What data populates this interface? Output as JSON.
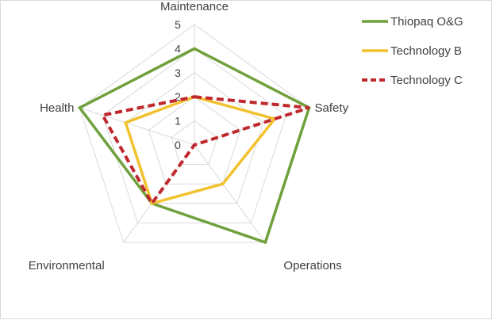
{
  "chart_data": {
    "type": "radar",
    "axes": [
      "Maintenance",
      "Safety",
      "Operations",
      "Environmental",
      "Health"
    ],
    "r_ticks": [
      "0",
      "1",
      "2",
      "3",
      "4",
      "5"
    ],
    "r_range": [
      0,
      5
    ],
    "grid": true,
    "legend_position": "right",
    "series": [
      {
        "name": "Thiopaq O&G",
        "values": [
          4,
          5,
          5,
          3,
          5
        ],
        "color": "#70a03c",
        "style": "solid"
      },
      {
        "name": "Technology B",
        "values": [
          2,
          3.5,
          2,
          3,
          3
        ],
        "color": "#f2c12e",
        "style": "solid"
      },
      {
        "name": "Technology C",
        "values": [
          2,
          5,
          0,
          3,
          4
        ],
        "color": "#c0282d",
        "style": "dashed"
      }
    ]
  }
}
